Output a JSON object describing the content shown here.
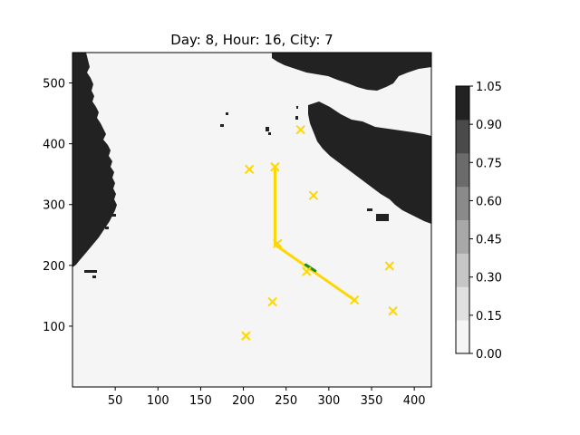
{
  "title": "Day: 8, Hour: 16, City: 7",
  "chart_data": {
    "type": "map",
    "title": "Day: 8, Hour: 16, City: 7",
    "xlim": [
      0,
      420
    ],
    "ylim": [
      0,
      550
    ],
    "x_ticks": [
      50,
      100,
      150,
      200,
      250,
      300,
      350,
      400
    ],
    "y_ticks": [
      100,
      200,
      300,
      400,
      500
    ],
    "colorbar": {
      "ticks": [
        "0.00",
        "0.15",
        "0.30",
        "0.45",
        "0.60",
        "0.75",
        "0.90",
        "1.05"
      ],
      "levels": [
        0.0,
        0.15,
        0.3,
        0.45,
        0.6,
        0.75,
        0.9,
        1.05
      ],
      "colors": [
        "#f5f5f5",
        "#e0e0e0",
        "#c6c6c6",
        "#a8a8a8",
        "#8a8a8a",
        "#6b6b6b",
        "#4a4a4a",
        "#222222"
      ]
    },
    "cities": [
      {
        "x": 207,
        "y": 358
      },
      {
        "x": 237,
        "y": 362
      },
      {
        "x": 267,
        "y": 423
      },
      {
        "x": 282,
        "y": 315
      },
      {
        "x": 240,
        "y": 236
      },
      {
        "x": 274,
        "y": 190
      },
      {
        "x": 371,
        "y": 199
      },
      {
        "x": 330,
        "y": 143
      },
      {
        "x": 375,
        "y": 125
      },
      {
        "x": 234,
        "y": 140
      },
      {
        "x": 203,
        "y": 84
      }
    ],
    "route": {
      "color": "#ffd700",
      "points": [
        [
          237,
          362
        ],
        [
          237,
          234
        ],
        [
          330,
          143
        ]
      ]
    },
    "current_segment": {
      "color": "#228b22",
      "points": [
        [
          273,
          201
        ],
        [
          284,
          191
        ]
      ]
    },
    "marker_color": "#ffd700",
    "land_color": "#222222",
    "sea_color": "#f5f5f5"
  }
}
